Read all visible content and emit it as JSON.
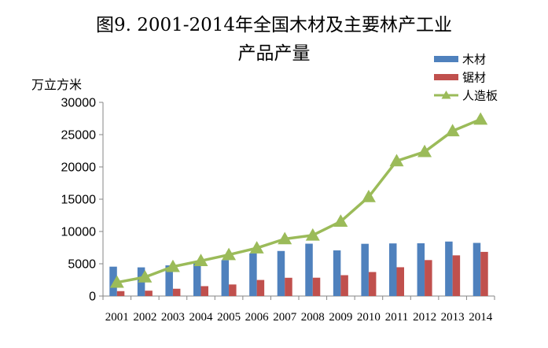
{
  "chart_data": {
    "type": "bar",
    "title": "图9. 2001-2014年全国木材及主要林产工业",
    "subtitle": "产品产量",
    "ylabel": "万立方米",
    "xlabel": "",
    "categories": [
      "2001",
      "2002",
      "2003",
      "2004",
      "2005",
      "2006",
      "2007",
      "2008",
      "2009",
      "2010",
      "2011",
      "2012",
      "2013",
      "2014"
    ],
    "ylim": [
      0,
      30000
    ],
    "yticks": [
      0,
      5000,
      10000,
      15000,
      20000,
      25000,
      30000
    ],
    "legend_position": "top-right",
    "grid": false,
    "series": [
      {
        "name": "木材",
        "type": "bar",
        "color": "#4f81bd",
        "values": [
          4550,
          4440,
          4750,
          5200,
          5560,
          6610,
          6980,
          8110,
          7070,
          8090,
          8150,
          8170,
          8440,
          8230
        ]
      },
      {
        "name": "锯材",
        "type": "bar",
        "color": "#c0504d",
        "values": [
          760,
          830,
          1130,
          1530,
          1790,
          2490,
          2830,
          2840,
          3230,
          3720,
          4460,
          5570,
          6300,
          6840
        ]
      },
      {
        "name": "人造板",
        "type": "line",
        "color": "#9bbb59",
        "values": [
          2110,
          2930,
          4550,
          5450,
          6390,
          7430,
          8840,
          9410,
          11550,
          15360,
          20920,
          22340,
          25560,
          27370
        ]
      }
    ]
  }
}
